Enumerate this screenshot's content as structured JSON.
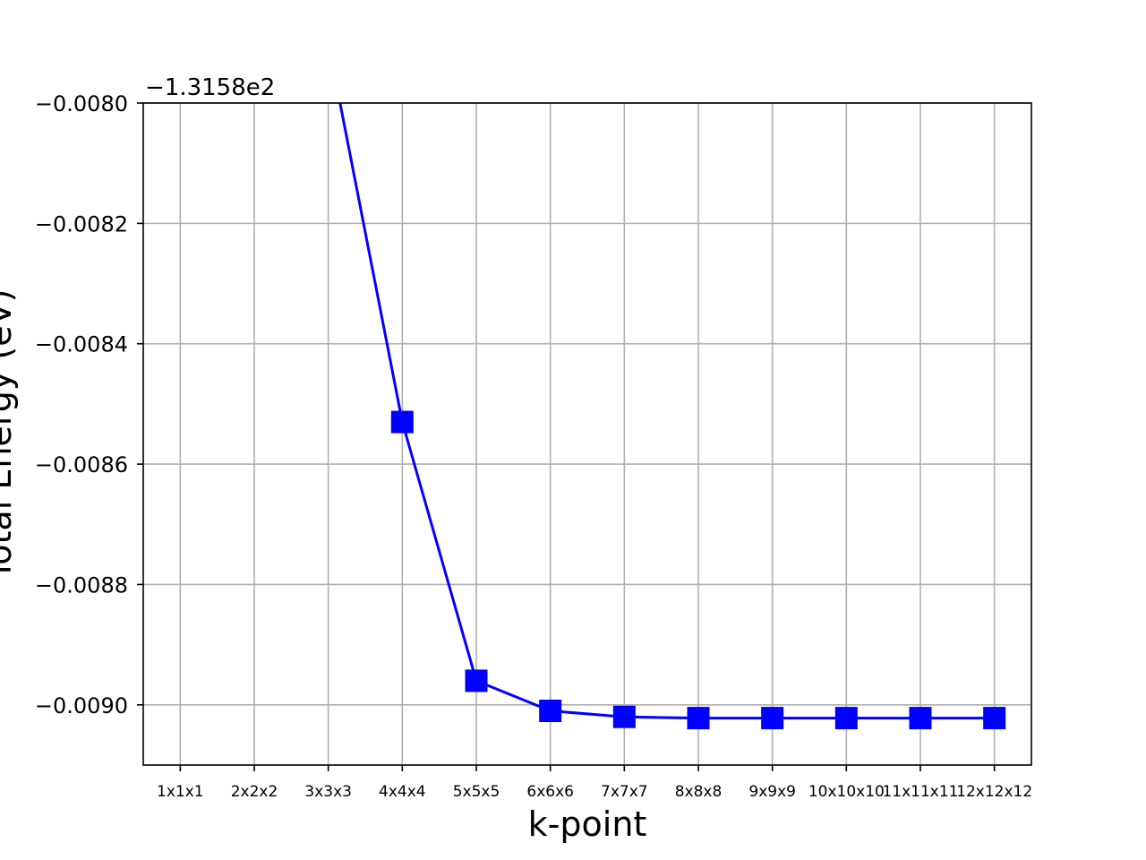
{
  "chart_data": {
    "type": "line",
    "title": "",
    "xlabel": "k-point",
    "ylabel": "Total Energy (eV)",
    "y_offset_label": "−1.3158e2",
    "y_offset": -131.58,
    "categories": [
      "1x1x1",
      "2x2x2",
      "3x3x3",
      "4x4x4",
      "5x5x5",
      "6x6x6",
      "7x7x7",
      "8x8x8",
      "9x9x9",
      "10x10x10",
      "11x11x11",
      "12x12x12"
    ],
    "series": [
      {
        "name": "",
        "color": "#0000ff",
        "marker": "square",
        "values": [
          null,
          null,
          -131.5879,
          -131.58853,
          -131.58896,
          -131.58901,
          -131.58902,
          -131.589022,
          -131.589022,
          -131.589022,
          -131.589022,
          -131.589022
        ]
      }
    ],
    "ylim": [
      -0.0091,
      -0.008
    ],
    "yticks": [
      -0.008,
      -0.0082,
      -0.0084,
      -0.0086,
      -0.0088,
      -0.009
    ],
    "ytick_labels": [
      "−0.0080",
      "−0.0082",
      "−0.0084",
      "−0.0086",
      "−0.0088",
      "−0.0090"
    ],
    "grid": true
  }
}
